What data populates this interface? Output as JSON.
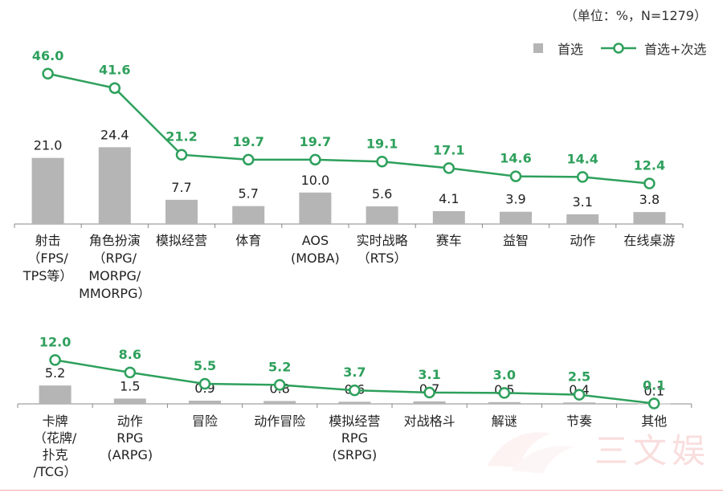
{
  "unit_note": "（单位：%，N=1279）",
  "colors": {
    "bar": "#b5b5b5",
    "line": "#2ea05c",
    "axis": "#888888",
    "value_text": "#222222"
  },
  "watermark": {
    "text": "三文娱"
  },
  "chart_data": [
    {
      "type": "bar",
      "legend_placement": "top-right",
      "series": [
        {
          "name": "首选",
          "type": "bar",
          "values": [
            21.0,
            24.4,
            7.7,
            5.7,
            10.0,
            5.6,
            4.1,
            3.9,
            3.1,
            3.8
          ]
        },
        {
          "name": "首选+次选",
          "type": "line",
          "values": [
            46.0,
            41.6,
            21.2,
            19.7,
            19.7,
            19.1,
            17.1,
            14.6,
            14.4,
            12.4
          ]
        }
      ],
      "categories": [
        [
          "射击",
          "（FPS/",
          "TPS等）"
        ],
        [
          "角色扮演",
          "（RPG/",
          "MORPG/",
          "MMORPG）"
        ],
        [
          "模拟经营"
        ],
        [
          "体育"
        ],
        [
          "AOS",
          "(MOBA)"
        ],
        [
          "实时战略",
          "（RTS）"
        ],
        [
          "赛车"
        ],
        [
          "益智"
        ],
        [
          "动作"
        ],
        [
          "在线桌游"
        ]
      ],
      "bar_labels": [
        "21.0",
        "24.4",
        "7.7",
        "5.7",
        "10.0",
        "5.6",
        "4.1",
        "3.9",
        "3.1",
        "3.8"
      ],
      "line_labels": [
        "46.0",
        "41.6",
        "21.2",
        "19.7",
        "19.7",
        "19.1",
        "17.1",
        "14.6",
        "14.4",
        "12.4"
      ]
    },
    {
      "type": "bar",
      "series": [
        {
          "name": "首选",
          "type": "bar",
          "values": [
            5.2,
            1.5,
            0.9,
            0.8,
            0.6,
            0.7,
            0.5,
            0.4,
            0.1
          ]
        },
        {
          "name": "首选+次选",
          "type": "line",
          "values": [
            12.0,
            8.6,
            5.5,
            5.2,
            3.7,
            3.1,
            3.0,
            2.5,
            0.1
          ]
        }
      ],
      "categories": [
        [
          "卡牌",
          "（花牌/",
          "扑克",
          "/TCG）"
        ],
        [
          "动作",
          "RPG",
          "(ARPG)"
        ],
        [
          "冒险"
        ],
        [
          "动作冒险"
        ],
        [
          "模拟经营",
          "RPG",
          "(SRPG)"
        ],
        [
          "对战格斗"
        ],
        [
          "解谜"
        ],
        [
          "节奏"
        ],
        [
          "其他"
        ]
      ],
      "bar_labels": [
        "5.2",
        "1.5",
        "0.9",
        "0.8",
        "0.6",
        "0.7",
        "0.5",
        "0.4",
        "0.1"
      ],
      "line_labels": [
        "12.0",
        "8.6",
        "5.5",
        "5.2",
        "3.7",
        "3.1",
        "3.0",
        "2.5",
        "0.1"
      ]
    }
  ]
}
